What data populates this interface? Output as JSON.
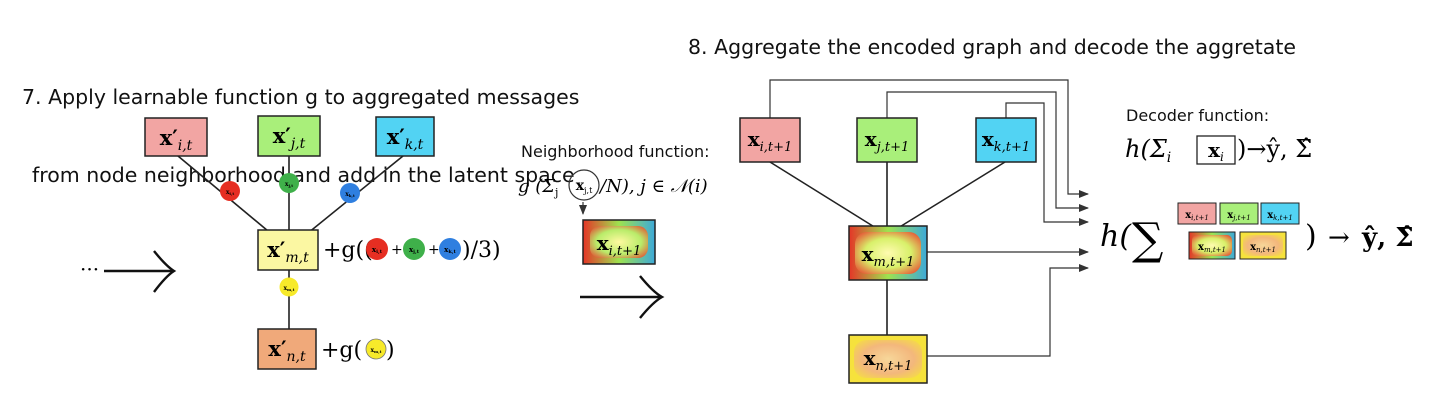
{
  "step7": {
    "title_line1": "7. Apply learnable function g to aggregated messages",
    "title_line2": "from node neighborhood and add in the latent space"
  },
  "step8": {
    "title": "8. Aggregate the encoded graph and decode the aggretate"
  },
  "neighborhood": {
    "label": "Neighborhood function:",
    "formula_pre": "g (Σ",
    "formula_sub": "j",
    "formula_circled": "x",
    "formula_circled_sub": "j,t",
    "formula_post": "/N), j ∈ 𝒩(i)",
    "result_node": "x",
    "result_sub": "i,t+1"
  },
  "decoder": {
    "label": "Decoder function:",
    "formula_left": "h(Σ",
    "formula_sub": "i",
    "formula_boxed": "x",
    "formula_boxed_sub": "i",
    "formula_right": ")→ŷ, Σ̂"
  },
  "left_graph": {
    "ellipsis": "···",
    "nodes": {
      "i": {
        "label": "x′",
        "sub": "i,t",
        "color": "#f2a5a3"
      },
      "j": {
        "label": "x′",
        "sub": "j,t",
        "color": "#a9ef7a"
      },
      "k": {
        "label": "x′",
        "sub": "k,t",
        "color": "#52d3f3"
      },
      "m": {
        "label": "x′",
        "sub": "m,t",
        "color": "#fbf7a2"
      },
      "n": {
        "label": "x′",
        "sub": "n,t",
        "color": "#f0a97a"
      }
    },
    "messages": {
      "i": {
        "label": "x",
        "sub": "i,t",
        "color": "#e62e22"
      },
      "j": {
        "label": "x",
        "sub": "j,t",
        "color": "#3fb04a"
      },
      "k": {
        "label": "x",
        "sub": "k,t",
        "color": "#2f7fe0"
      },
      "m": {
        "label": "x",
        "sub": "m,t",
        "color": "#f7ea2a"
      }
    },
    "update_m_prefix": "+g((",
    "update_m_plus": "+",
    "update_m_suffix": ")/3)",
    "update_n_prefix": "+g(",
    "update_n_suffix": ")"
  },
  "right_graph": {
    "nodes": {
      "i": {
        "label": "x",
        "sub": "i,t+1",
        "color": "#f2a5a3"
      },
      "j": {
        "label": "x",
        "sub": "j,t+1",
        "color": "#a9ef7a"
      },
      "k": {
        "label": "x",
        "sub": "k,t+1",
        "color": "#52d3f3"
      },
      "m": {
        "label": "x",
        "sub": "m,t+1"
      },
      "n": {
        "label": "x",
        "sub": "n,t+1"
      }
    }
  },
  "aggregate": {
    "h": "h(",
    "sum": "∑",
    "close": ")",
    "arrow": "→",
    "result": "ŷ, Σ̂",
    "boxes": [
      {
        "label": "x",
        "sub": "i,t+1",
        "color": "#f2a5a3"
      },
      {
        "label": "x",
        "sub": "j,t+1",
        "color": "#a9ef7a"
      },
      {
        "label": "x",
        "sub": "k,t+1",
        "color": "#52d3f3"
      },
      {
        "label": "x",
        "sub": "m,t+1"
      },
      {
        "label": "x",
        "sub": "n,t+1"
      }
    ]
  }
}
